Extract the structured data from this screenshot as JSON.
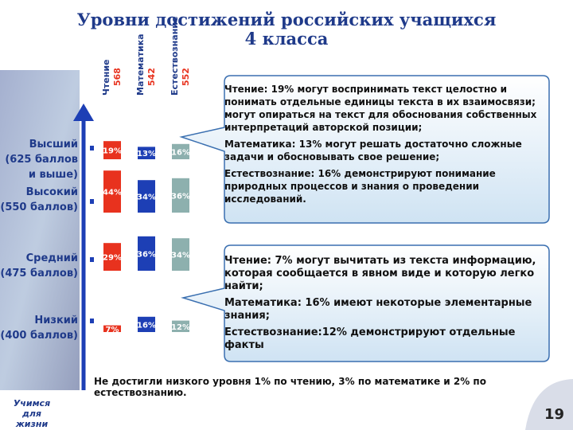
{
  "title_line1": "Уровни достижений российских учащихся",
  "title_line2": "4 класса",
  "subjects": [
    {
      "name": "Чтение",
      "score": 568,
      "color": "#e8321e"
    },
    {
      "name": "Математика",
      "score": 542,
      "color": "#1d3fb5"
    },
    {
      "name": "Естествознание",
      "score": 552,
      "color": "#8db0ae"
    }
  ],
  "levels": [
    {
      "name": "Высший",
      "range": "(625 баллов и выше)"
    },
    {
      "name": "Высокий",
      "range": "(550 баллов)"
    },
    {
      "name": "Средний",
      "range": "(475 баллов)"
    },
    {
      "name": "Низкий",
      "range": "(400 баллов)"
    }
  ],
  "series": [
    {
      "values": [
        19,
        44,
        29,
        7
      ],
      "value_labels": [
        "19%",
        "44%",
        "29%",
        "7%"
      ]
    },
    {
      "values": [
        13,
        34,
        36,
        16
      ],
      "value_labels": [
        "13%",
        "34%",
        "36%",
        "16%"
      ]
    },
    {
      "values": [
        16,
        36,
        34,
        12
      ],
      "value_labels": [
        "16%",
        "36%",
        "34%",
        "12%"
      ]
    }
  ],
  "callout_top": [
    "Чтение: 19% могут воспринимать текст целостно и понимать отдельные единицы текста в их взаимосвязи; могут опираться на текст для обоснования собственных интерпретаций авторской позиции;",
    "Математика: 13% могут решать достаточно сложные задачи и обосновывать свое решение;",
    "Естествознание: 16% демонстрируют понимание природных процессов и знания о проведении исследований."
  ],
  "callout_bottom": [
    "Чтение: 7% могут вычитать из текста информацию, которая сообщается в явном виде и которую легко найти;",
    "Математика: 16% имеют некоторые элементарные знания;",
    "Естествознание:12% демонстрируют отдельные факты"
  ],
  "footnote": "Не достигли низкого уровня 1% по чтению, 3% по математике и 2% по естествознанию.",
  "logo": "Учимся для жизни",
  "page_number": "19"
}
